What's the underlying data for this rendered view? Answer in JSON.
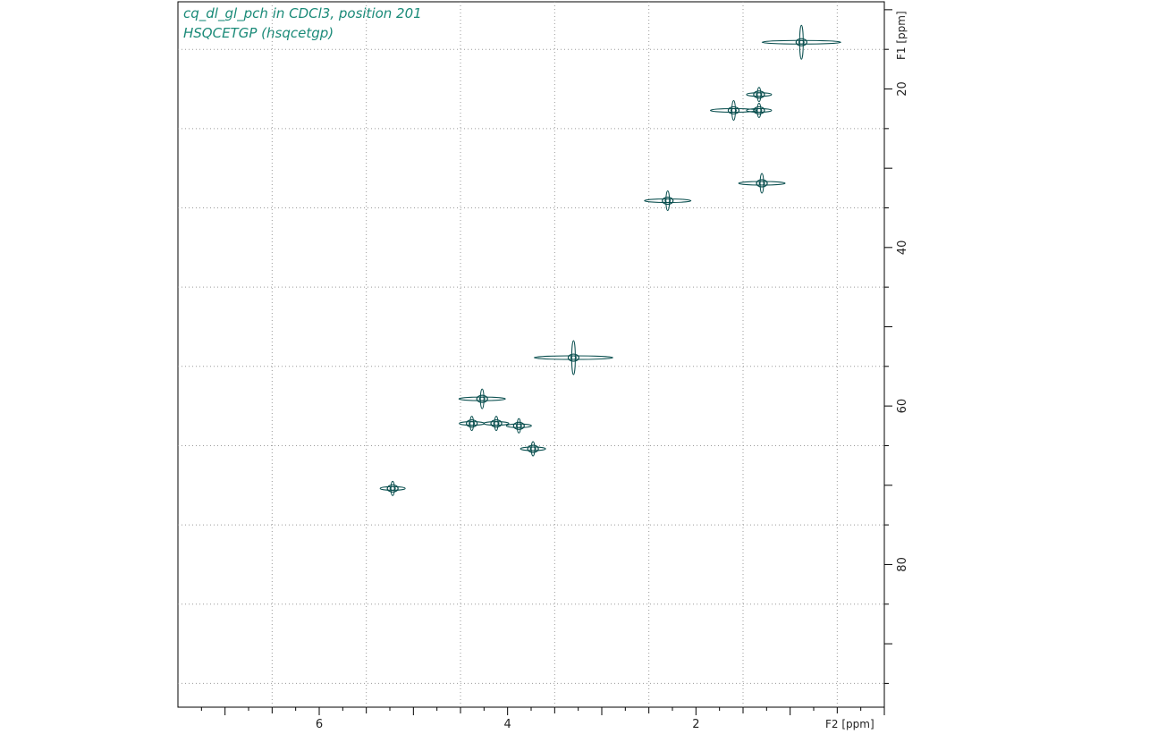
{
  "chart_data": {
    "type": "scatter",
    "title": "cq_dl_gl_pch in CDCl3, position 201",
    "subtitle": "HSQCETGP (hsqcetgp)",
    "xlabel": "F2 [ppm]",
    "ylabel": "F1 [ppm]",
    "xlim": [
      7.5,
      0.0
    ],
    "ylim": [
      9.0,
      98.0
    ],
    "x_reversed": true,
    "y_reversed": true,
    "x_ticks": [
      6,
      4,
      2
    ],
    "y_ticks": [
      20,
      40,
      60,
      80
    ],
    "grid": true,
    "contour_color": "#0a4f4f",
    "title_color": "#1a8a78",
    "series": [
      {
        "values": [
          {
            "x": 0.88,
            "y": 14.1
          },
          {
            "x": 1.6,
            "y": 22.7
          },
          {
            "x": 1.33,
            "y": 22.7
          },
          {
            "x": 1.33,
            "y": 20.7
          },
          {
            "x": 1.3,
            "y": 31.9
          },
          {
            "x": 2.3,
            "y": 34.1
          },
          {
            "x": 3.3,
            "y": 53.9
          },
          {
            "x": 4.27,
            "y": 59.1
          },
          {
            "x": 4.38,
            "y": 62.2
          },
          {
            "x": 4.12,
            "y": 62.2
          },
          {
            "x": 3.88,
            "y": 62.5
          },
          {
            "x": 3.73,
            "y": 65.4
          },
          {
            "x": 5.22,
            "y": 70.4
          }
        ]
      }
    ]
  }
}
